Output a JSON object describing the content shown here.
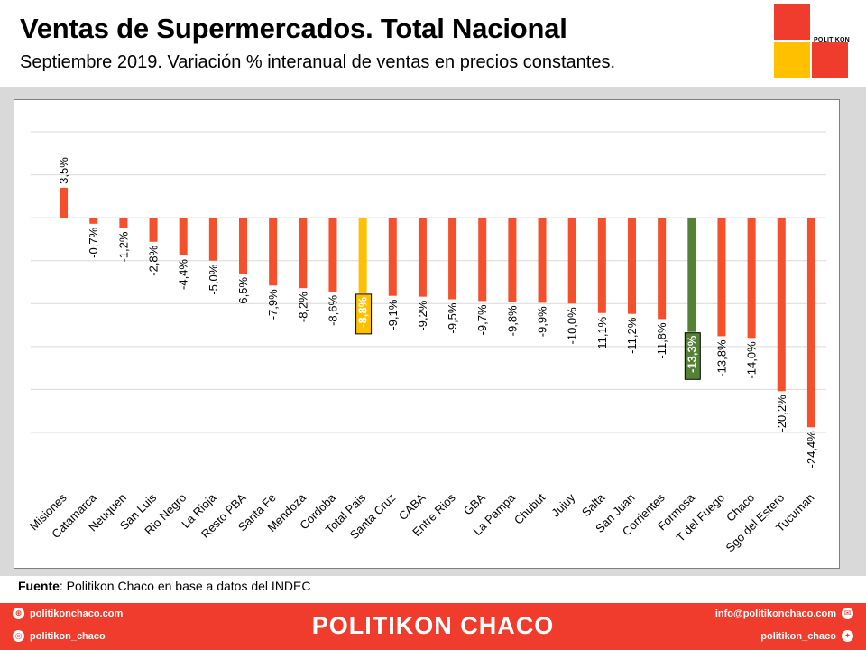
{
  "header": {
    "title": "Ventas de Supermercados. Total Nacional",
    "subtitle": "Septiembre 2019. Variación % interanual de ventas en precios constantes.",
    "logo_text": "POLITIKON"
  },
  "colors": {
    "default_bar": "#f4502c",
    "total_pais": "#ffc000",
    "formosa": "#548235",
    "brand_red": "#f03c2c"
  },
  "chart_data": {
    "type": "bar",
    "categories": [
      "Misiones",
      "Catamarca",
      "Neuquen",
      "San Luis",
      "Rio Negro",
      "La Rioja",
      "Resto PBA",
      "Santa Fe",
      "Mendoza",
      "Cordoba",
      "Total Pais",
      "Santa Cruz",
      "CABA",
      "Entre Rios",
      "GBA",
      "La Pampa",
      "Chubut",
      "Jujuy",
      "Salta",
      "San Juan",
      "Corrientes",
      "Formosa",
      "T del Fuego",
      "Chaco",
      "Sgo del Estero",
      "Tucuman"
    ],
    "values": [
      3.5,
      -0.7,
      -1.2,
      -2.8,
      -4.4,
      -5.0,
      -6.5,
      -7.9,
      -8.2,
      -8.6,
      -8.8,
      -9.1,
      -9.2,
      -9.5,
      -9.7,
      -9.8,
      -9.9,
      -10.0,
      -11.1,
      -11.2,
      -11.8,
      -13.3,
      -13.8,
      -14.0,
      -20.2,
      -24.4
    ],
    "labels": [
      "3,5%",
      "-0,7%",
      "-1,2%",
      "-2,8%",
      "-4,4%",
      "-5,0%",
      "-6,5%",
      "-7,9%",
      "-8,2%",
      "-8,6%",
      "-8,8%",
      "-9,1%",
      "-9,2%",
      "-9,5%",
      "-9,7%",
      "-9,8%",
      "-9,9%",
      "-10,0%",
      "-11,1%",
      "-11,2%",
      "-11,8%",
      "-13,3%",
      "-13,8%",
      "-14,0%",
      "-20,2%",
      "-24,4%"
    ],
    "highlights": {
      "Total Pais": "#ffc000",
      "Formosa": "#548235"
    },
    "ylim": [
      -25,
      10
    ],
    "grid": true
  },
  "source": {
    "label": "Fuente",
    "text": ": Politikon Chaco en base a datos del INDEC"
  },
  "footer": {
    "brand": "POLITIKON CHACO",
    "website": "politikonchaco.com",
    "instagram": "politikon_chaco",
    "email": "info@politikonchaco.com",
    "twitter": "politikon_chaco"
  }
}
